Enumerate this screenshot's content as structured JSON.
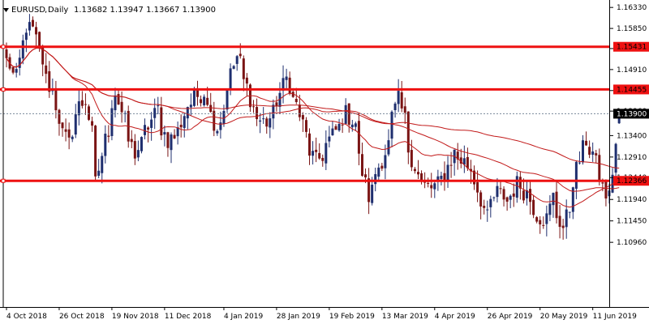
{
  "header": {
    "symbol": "EURUSD",
    "timeframe": "Daily",
    "ohlc": "1.13682 1.13947 1.13667 1.13900"
  },
  "colors": {
    "background": "#ffffff",
    "bull_candle": "#1f2f6f",
    "bear_candle": "#7a1414",
    "moving_average": "#c21a1a",
    "level_line": "#ee1111",
    "price_line": "#778899",
    "price_tag_bg": "#000000",
    "price_tag_text": "#ffffff"
  },
  "chart_data": {
    "type": "candlestick",
    "instrument": "EURUSD",
    "timeframe": "Daily",
    "ylim": [
      1.095,
      1.165
    ],
    "grid": false,
    "current_price": 1.139,
    "x_tick_labels": [
      "4 Oct 2018",
      "26 Oct 2018",
      "19 Nov 2018",
      "11 Dec 2018",
      "4 Jan 2019",
      "28 Jan 2019",
      "19 Feb 2019",
      "13 Mar 2019",
      "4 Apr 2019",
      "26 Apr 2019",
      "20 May 2019",
      "11 Jun 2019"
    ],
    "y_tick_labels": [
      "1.16330",
      "1.15850",
      "1.15390",
      "1.14910",
      "1.14430",
      "1.13960",
      "1.13400",
      "1.12910",
      "1.12440",
      "1.11940",
      "1.11450",
      "1.10960"
    ],
    "y_ticks": [
      1.1633,
      1.1585,
      1.1539,
      1.1491,
      1.1443,
      1.1396,
      1.134,
      1.1291,
      1.1244,
      1.1194,
      1.1145,
      1.1096
    ],
    "horizontal_levels": [
      {
        "value": 1.15431,
        "label": "1.15431"
      },
      {
        "value": 1.14455,
        "label": "1.14455"
      },
      {
        "value": 1.12366,
        "label": "1.12366"
      }
    ],
    "price_label": "1.13900",
    "anchors": [
      {
        "date": "2018-10-04",
        "close": 1.151
      },
      {
        "date": "2018-10-09",
        "close": 1.147
      },
      {
        "date": "2018-10-12",
        "close": 1.159
      },
      {
        "date": "2018-10-16",
        "close": 1.158
      },
      {
        "date": "2018-10-19",
        "close": 1.151
      },
      {
        "date": "2018-10-24",
        "close": 1.144
      },
      {
        "date": "2018-10-26",
        "close": 1.138
      },
      {
        "date": "2018-10-31",
        "close": 1.132
      },
      {
        "date": "2018-11-02",
        "close": 1.139
      },
      {
        "date": "2018-11-07",
        "close": 1.142
      },
      {
        "date": "2018-11-12",
        "close": 1.123
      },
      {
        "date": "2018-11-15",
        "close": 1.133
      },
      {
        "date": "2018-11-20",
        "close": 1.144
      },
      {
        "date": "2018-11-23",
        "close": 1.137
      },
      {
        "date": "2018-11-28",
        "close": 1.13
      },
      {
        "date": "2018-12-03",
        "close": 1.135
      },
      {
        "date": "2018-12-07",
        "close": 1.14
      },
      {
        "date": "2018-12-12",
        "close": 1.133
      },
      {
        "date": "2018-12-17",
        "close": 1.135
      },
      {
        "date": "2018-12-20",
        "close": 1.141
      },
      {
        "date": "2018-12-27",
        "close": 1.144
      },
      {
        "date": "2019-01-02",
        "close": 1.136
      },
      {
        "date": "2019-01-04",
        "close": 1.14
      },
      {
        "date": "2019-01-10",
        "close": 1.152
      },
      {
        "date": "2019-01-15",
        "close": 1.145
      },
      {
        "date": "2019-01-18",
        "close": 1.138
      },
      {
        "date": "2019-01-23",
        "close": 1.137
      },
      {
        "date": "2019-01-28",
        "close": 1.142
      },
      {
        "date": "2019-01-31",
        "close": 1.147
      },
      {
        "date": "2019-02-05",
        "close": 1.141
      },
      {
        "date": "2019-02-08",
        "close": 1.134
      },
      {
        "date": "2019-02-13",
        "close": 1.128
      },
      {
        "date": "2019-02-18",
        "close": 1.132
      },
      {
        "date": "2019-02-21",
        "close": 1.135
      },
      {
        "date": "2019-02-26",
        "close": 1.139
      },
      {
        "date": "2019-03-01",
        "close": 1.137
      },
      {
        "date": "2019-03-07",
        "close": 1.12
      },
      {
        "date": "2019-03-12",
        "close": 1.127
      },
      {
        "date": "2019-03-15",
        "close": 1.132
      },
      {
        "date": "2019-03-20",
        "close": 1.142
      },
      {
        "date": "2019-03-25",
        "close": 1.131
      },
      {
        "date": "2019-03-29",
        "close": 1.123
      },
      {
        "date": "2019-04-03",
        "close": 1.122
      },
      {
        "date": "2019-04-08",
        "close": 1.124
      },
      {
        "date": "2019-04-12",
        "close": 1.13
      },
      {
        "date": "2019-04-17",
        "close": 1.128
      },
      {
        "date": "2019-04-22",
        "close": 1.124
      },
      {
        "date": "2019-04-26",
        "close": 1.115
      },
      {
        "date": "2019-05-01",
        "close": 1.121
      },
      {
        "date": "2019-05-06",
        "close": 1.119
      },
      {
        "date": "2019-05-09",
        "close": 1.123
      },
      {
        "date": "2019-05-14",
        "close": 1.121
      },
      {
        "date": "2019-05-17",
        "close": 1.116
      },
      {
        "date": "2019-05-22",
        "close": 1.115
      },
      {
        "date": "2019-05-24",
        "close": 1.12
      },
      {
        "date": "2019-05-29",
        "close": 1.113
      },
      {
        "date": "2019-06-03",
        "close": 1.124
      },
      {
        "date": "2019-06-07",
        "close": 1.133
      },
      {
        "date": "2019-06-11",
        "close": 1.13
      },
      {
        "date": "2019-06-14",
        "close": 1.122
      },
      {
        "date": "2019-06-18",
        "close": 1.12
      },
      {
        "date": "2019-06-20",
        "close": 1.132
      },
      {
        "date": "2019-06-21",
        "close": 1.139
      }
    ]
  }
}
